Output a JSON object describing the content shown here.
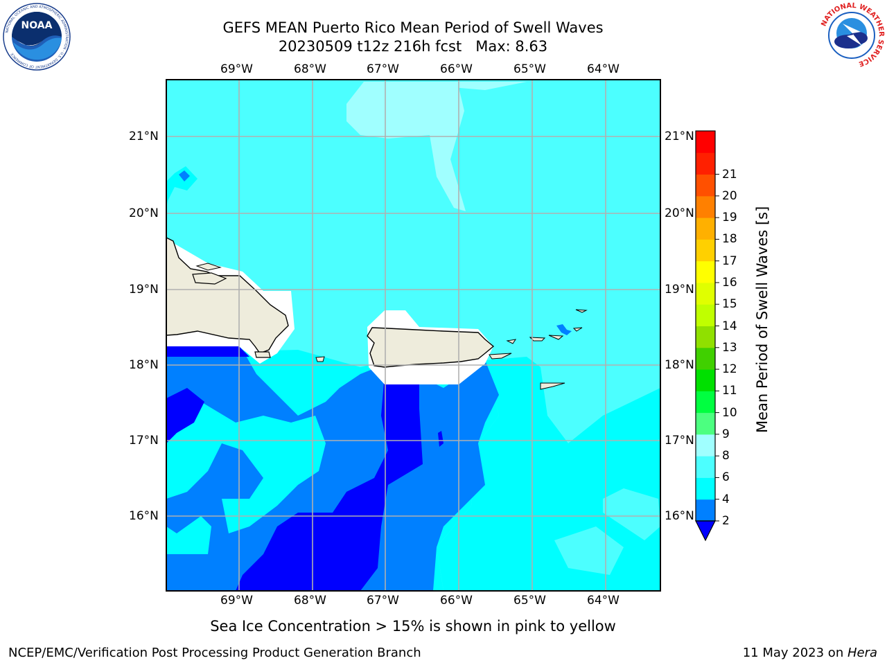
{
  "header": {
    "title_line1": "GEFS MEAN Puerto Rico Mean Period of Swell Waves",
    "title_line2": "20230509 t12z 216h fcst   Max: 8.63"
  },
  "logos": {
    "noaa": "NOAA",
    "noaa_ring": "NATIONAL OCEANIC AND ATMOSPHERIC ADMINISTRATION · U.S. DEPARTMENT OF COMMERCE",
    "nws_ring": "NATIONAL WEATHER SERVICE"
  },
  "map": {
    "lon_labels": [
      "69°W",
      "68°W",
      "67°W",
      "66°W",
      "65°W",
      "64°W"
    ],
    "lat_labels": [
      "21°N",
      "20°N",
      "19°N",
      "18°N",
      "17°N",
      "16°N"
    ],
    "field_max": 8.63,
    "colors": {
      "lt2": "#0000ff",
      "b2_4": "#0080ff",
      "b4_6": "#00ffff",
      "b6_8": "#4cffff",
      "b8_9": "#a0ffff",
      "land": "#eeecdc",
      "mask": "#ffffff",
      "grid": "#b0b0b0"
    }
  },
  "colorbar": {
    "label": "Mean Period of Swell Waves [s]",
    "ticks": [
      "2",
      "4",
      "6",
      "8",
      "9",
      "10",
      "11",
      "12",
      "13",
      "14",
      "15",
      "16",
      "17",
      "18",
      "19",
      "20",
      "21"
    ],
    "colors": [
      "#0080ff",
      "#00ffff",
      "#4cffff",
      "#a0ffff",
      "#4cff80",
      "#00ff40",
      "#00e000",
      "#40d000",
      "#90e000",
      "#c0ff00",
      "#e0ff00",
      "#ffff00",
      "#ffd000",
      "#ffb000",
      "#ff8000",
      "#ff5000",
      "#ff2000",
      "#ff0000"
    ],
    "under_color": "#0000ff"
  },
  "caption": "Sea Ice Concentration > 15% is shown in pink to yellow",
  "footer": {
    "left": "NCEP/EMC/Verification Post Processing Product Generation Branch",
    "date": "11 May 2023 on ",
    "machine": "Hera"
  }
}
